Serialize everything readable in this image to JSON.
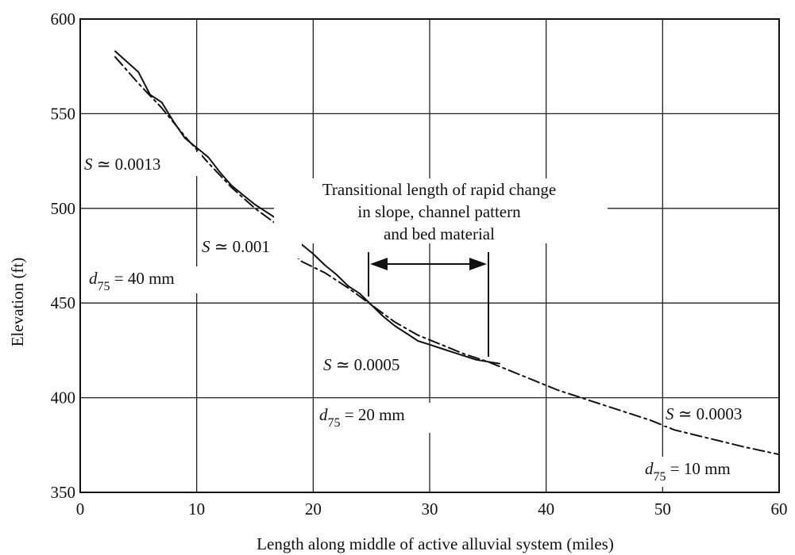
{
  "chart_data": {
    "type": "line",
    "title": "",
    "xlabel": "Length along middle of active alluvial system (miles)",
    "ylabel": "Elevation (ft)",
    "xlim": [
      0,
      60
    ],
    "ylim": [
      350,
      600
    ],
    "x_ticks": [
      "0",
      "10",
      "20",
      "30",
      "40",
      "50",
      "60"
    ],
    "y_ticks": [
      "350",
      "400",
      "450",
      "500",
      "550",
      "600"
    ],
    "grid": true,
    "series": [
      {
        "style": "solid",
        "x": [
          3,
          5,
          6,
          7,
          8,
          9,
          10,
          11,
          12,
          13,
          14,
          15,
          16,
          17,
          18,
          19,
          20,
          21,
          22,
          23,
          24,
          25,
          26,
          27,
          28,
          29,
          30,
          31,
          32,
          33,
          34,
          35,
          36
        ],
        "y": [
          583,
          572,
          560,
          556,
          546,
          537,
          532,
          527,
          519,
          512,
          507,
          502,
          498,
          494,
          486,
          481,
          476,
          470,
          465,
          459,
          455,
          449,
          443,
          438,
          434,
          430,
          428,
          426,
          424,
          422,
          420,
          419,
          418
        ]
      },
      {
        "style": "dash-dot",
        "x": [
          3,
          5,
          7,
          9,
          11,
          13,
          15,
          17,
          18,
          19,
          21,
          23,
          25,
          27,
          29,
          31,
          33,
          35,
          37,
          39,
          41,
          43,
          45,
          47,
          49,
          51,
          53,
          55,
          57,
          60
        ],
        "y": [
          580,
          566,
          553,
          538,
          524,
          511,
          500,
          491,
          478,
          472,
          466,
          458,
          449,
          440,
          433,
          428,
          423,
          419,
          414,
          409,
          404,
          400,
          396,
          392,
          388,
          383,
          380,
          377,
          374,
          370
        ]
      }
    ]
  },
  "annotations": {
    "slope_upper": {
      "symbol": "S",
      "text": " ≃ 0.0013"
    },
    "slope_mid": {
      "symbol": "S",
      "text": " ≃ 0.001"
    },
    "d_upper": {
      "symbol": "d",
      "sub": "75",
      "text": " = 40 mm"
    },
    "transition_1": "Transitional length of rapid change",
    "transition_2": "in slope, channel pattern",
    "transition_3": "and bed material",
    "slope_low": {
      "symbol": "S",
      "text": " ≃ 0.0005"
    },
    "d_mid": {
      "symbol": "d",
      "sub": "75",
      "text": " = 20 mm"
    },
    "slope_end": {
      "symbol": "S",
      "text": " ≃ 0.0003"
    },
    "d_end": {
      "symbol": "d",
      "sub": "75",
      "text": " = 10 mm"
    }
  }
}
